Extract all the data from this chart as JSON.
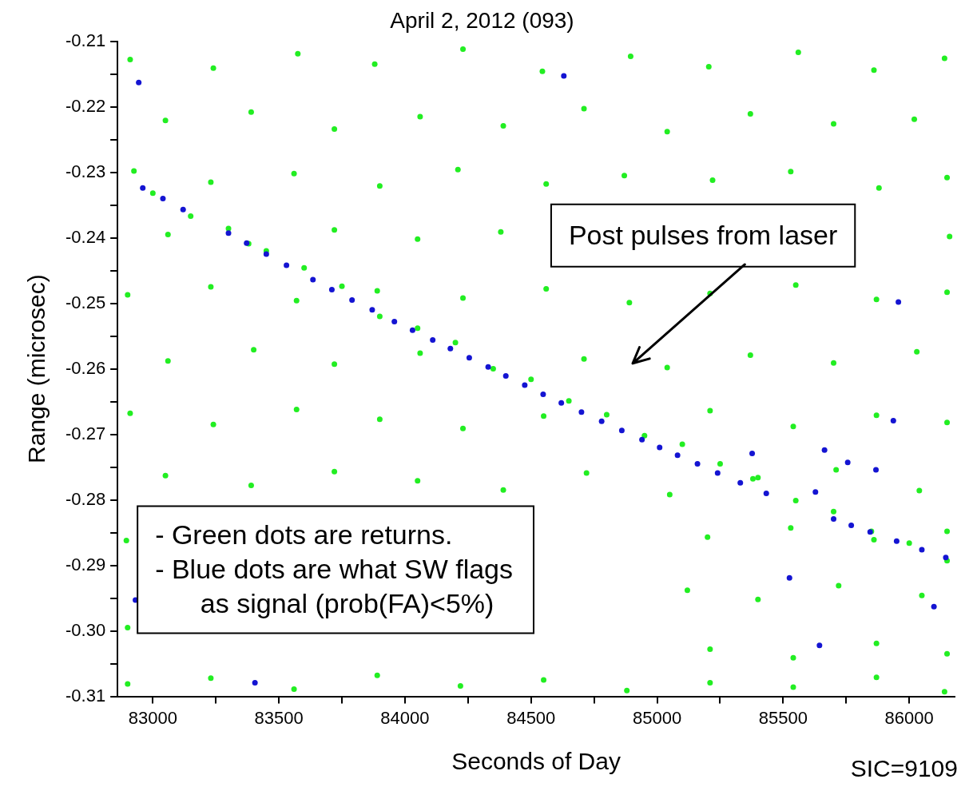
{
  "chart_data": {
    "type": "scatter",
    "title": "April 2, 2012 (093)",
    "xlabel": "Seconds of Day",
    "ylabel": "Range (microsec)",
    "xlim": [
      82860,
      86180
    ],
    "ylim": [
      -0.31,
      -0.21
    ],
    "xticks": [
      {
        "value": 83000,
        "label": "83000"
      },
      {
        "value": 83250,
        "label": null
      },
      {
        "value": 83500,
        "label": "83500"
      },
      {
        "value": 83750,
        "label": null
      },
      {
        "value": 84000,
        "label": "84000"
      },
      {
        "value": 84250,
        "label": null
      },
      {
        "value": 84500,
        "label": "84500"
      },
      {
        "value": 84750,
        "label": null
      },
      {
        "value": 85000,
        "label": "85000"
      },
      {
        "value": 85250,
        "label": null
      },
      {
        "value": 85500,
        "label": "85500"
      },
      {
        "value": 85750,
        "label": null
      },
      {
        "value": 86000,
        "label": "86000"
      }
    ],
    "yticks": [
      -0.31,
      {
        "value": -0.305,
        "label": null
      },
      {
        "value": -0.3,
        "label": "-0.30"
      },
      {
        "value": -0.295,
        "label": null
      },
      -0.29,
      {
        "value": -0.285,
        "label": null
      },
      -0.28,
      {
        "value": -0.275,
        "label": null
      },
      -0.27,
      {
        "value": -0.265,
        "label": null
      },
      -0.26,
      {
        "value": -0.255,
        "label": null
      },
      -0.25,
      {
        "value": -0.245,
        "label": null
      },
      -0.24,
      {
        "value": -0.235,
        "label": null
      },
      -0.23,
      {
        "value": -0.225,
        "label": null
      },
      -0.22,
      {
        "value": -0.215,
        "label": null
      },
      -0.21
    ],
    "grid": false,
    "legend": false,
    "marker": "circle",
    "series": [
      {
        "color": "#22ee22",
        "x": [
          82910,
          83240,
          83575,
          83880,
          84230,
          84545,
          84895,
          85205,
          85560,
          85860,
          86140,
          83050,
          83390,
          83720,
          84060,
          84390,
          84710,
          85040,
          85370,
          85700,
          86020,
          82925,
          83230,
          83560,
          83900,
          84210,
          84560,
          84870,
          85220,
          85530,
          85880,
          86150,
          83060,
          83380,
          83720,
          84050,
          84380,
          86160,
          82900,
          83230,
          83570,
          83890,
          84230,
          84560,
          84890,
          85210,
          85550,
          85870,
          86150,
          83060,
          83400,
          83720,
          84060,
          84710,
          85040,
          85370,
          85700,
          86030,
          82910,
          83240,
          83570,
          83900,
          84230,
          84550,
          85210,
          85540,
          85870,
          86150,
          83050,
          83390,
          83720,
          84050,
          84390,
          84720,
          85050,
          85380,
          85710,
          86040,
          85200,
          85530,
          85860,
          86150,
          85120,
          85400,
          85720,
          86050,
          85210,
          85540,
          85870,
          86150,
          82900,
          83230,
          83560,
          83890,
          84220,
          84550,
          84880,
          85210,
          85540,
          85870,
          86140,
          82895,
          82900,
          83000,
          83150,
          83300,
          83450,
          83600,
          83750,
          83900,
          84050,
          84200,
          84350,
          84500,
          84650,
          84800,
          84950,
          85100,
          85250,
          85400,
          85550,
          85700,
          85850,
          86000,
          86150
        ],
        "values": [
          -0.2128,
          -0.2141,
          -0.2119,
          -0.2135,
          -0.2112,
          -0.2146,
          -0.2123,
          -0.2139,
          -0.2117,
          -0.2144,
          -0.2126,
          -0.2221,
          -0.2208,
          -0.2234,
          -0.2215,
          -0.2229,
          -0.2203,
          -0.2238,
          -0.2211,
          -0.2226,
          -0.2219,
          -0.2298,
          -0.2315,
          -0.2302,
          -0.2321,
          -0.2296,
          -0.2318,
          -0.2305,
          -0.2312,
          -0.2299,
          -0.2324,
          -0.2308,
          -0.2395,
          -0.2409,
          -0.2388,
          -0.2402,
          -0.2391,
          -0.2398,
          -0.2487,
          -0.2475,
          -0.2496,
          -0.2481,
          -0.2492,
          -0.2478,
          -0.2499,
          -0.2485,
          -0.2472,
          -0.2494,
          -0.2483,
          -0.2588,
          -0.2571,
          -0.2593,
          -0.2576,
          -0.2585,
          -0.2598,
          -0.2579,
          -0.2591,
          -0.2574,
          -0.2668,
          -0.2685,
          -0.2662,
          -0.2677,
          -0.2691,
          -0.2672,
          -0.2664,
          -0.2688,
          -0.2671,
          -0.2682,
          -0.2763,
          -0.2778,
          -0.2757,
          -0.2771,
          -0.2785,
          -0.2759,
          -0.2792,
          -0.2768,
          -0.2754,
          -0.2786,
          -0.2857,
          -0.2843,
          -0.2861,
          -0.2848,
          -0.2938,
          -0.2952,
          -0.2931,
          -0.2946,
          -0.3028,
          -0.3041,
          -0.3019,
          -0.3035,
          -0.3081,
          -0.3072,
          -0.3089,
          -0.3068,
          -0.3084,
          -0.3075,
          -0.3091,
          -0.3079,
          -0.3086,
          -0.3071,
          -0.3093,
          -0.2862,
          -0.2995,
          -0.2332,
          -0.2367,
          -0.2386,
          -0.242,
          -0.2446,
          -0.2474,
          -0.252,
          -0.2538,
          -0.256,
          -0.26,
          -0.2616,
          -0.2649,
          -0.267,
          -0.2702,
          -0.2715,
          -0.2745,
          -0.2766,
          -0.2801,
          -0.2818,
          -0.2848,
          -0.2866,
          -0.2893
        ]
      },
      {
        "color": "#1414d2",
        "x": [
          82960,
          83040,
          83120,
          83300,
          83372,
          83450,
          83530,
          83635,
          83710,
          83790,
          83870,
          83958,
          84030,
          84110,
          84180,
          84255,
          84330,
          84400,
          84475,
          84548,
          84620,
          84700,
          84780,
          84860,
          84940,
          85010,
          85081,
          85160,
          85240,
          85330,
          85433,
          85700,
          85770,
          85845,
          85950,
          86050,
          86145,
          82944,
          84630,
          85957,
          85937,
          85377,
          85664,
          85756,
          85868,
          85628,
          85525,
          82931,
          83405,
          85644,
          86098
        ],
        "values": [
          -0.2324,
          -0.234,
          -0.2357,
          -0.2393,
          -0.2408,
          -0.2425,
          -0.2442,
          -0.2464,
          -0.2479,
          -0.2495,
          -0.251,
          -0.2528,
          -0.2541,
          -0.2556,
          -0.2569,
          -0.2583,
          -0.2597,
          -0.2611,
          -0.2625,
          -0.2639,
          -0.2652,
          -0.2666,
          -0.268,
          -0.2694,
          -0.2708,
          -0.272,
          -0.2732,
          -0.2745,
          -0.2759,
          -0.2774,
          -0.279,
          -0.2829,
          -0.2839,
          -0.2849,
          -0.2863,
          -0.2876,
          -0.2888,
          -0.2163,
          -0.2153,
          -0.2498,
          -0.2679,
          -0.2729,
          -0.2724,
          -0.2743,
          -0.2754,
          -0.2788,
          -0.2919,
          -0.2953,
          -0.3079,
          -0.3022,
          -0.2963
        ]
      }
    ],
    "annotations": [
      "Post pulses from laser",
      "- Green dots are returns.\n- Blue dots are what SW flags\n      as signal (prob(FA)<5%)",
      "SIC=9109"
    ]
  }
}
